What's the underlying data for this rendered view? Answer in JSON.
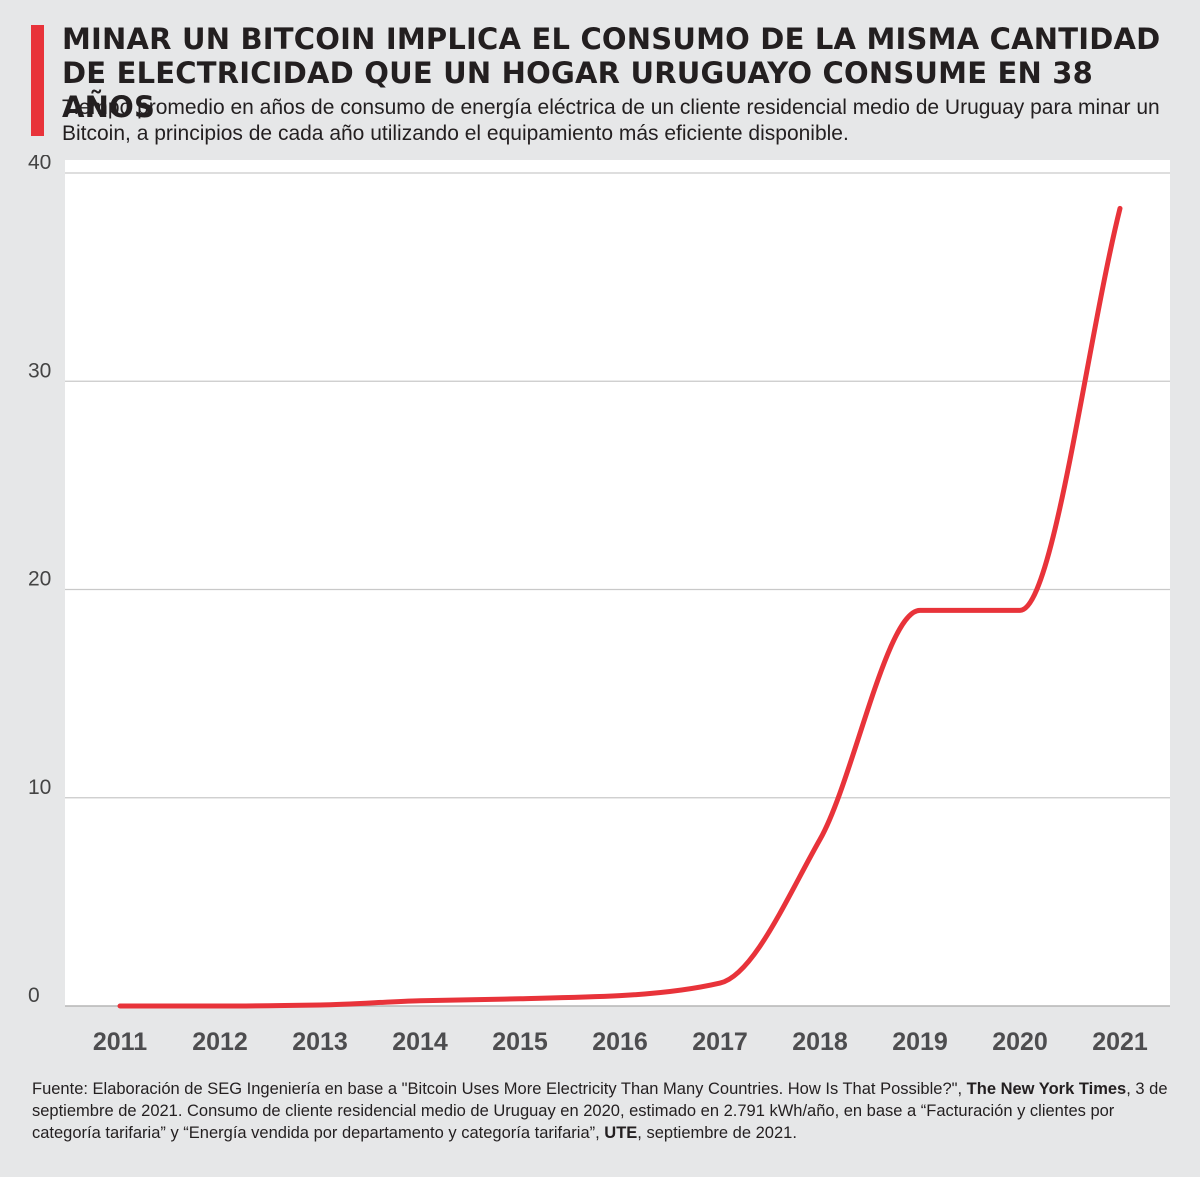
{
  "header": {
    "title": "MINAR UN BITCOIN IMPLICA EL CONSUMO DE LA MISMA CANTIDAD DE ELECTRICIDAD QUE UN HOGAR URUGUAYO CONSUME EN 38 AÑOS",
    "subtitle": "Tiempo promedio en años de consumo de energía eléctrica de un cliente residencial medio de Uruguay para minar un Bitcoin, a principios de cada año utilizando el equipamiento más eficiente disponible."
  },
  "colors": {
    "accent": "#e8333a",
    "line": "#e8333a",
    "background": "#e6e7e8",
    "plot_background": "#ffffff",
    "gridline": "#c9c9c9"
  },
  "chart_data": {
    "type": "line",
    "x": [
      2011,
      2012,
      2013,
      2014,
      2015,
      2016,
      2017,
      2018,
      2019,
      2020,
      2021
    ],
    "x_tick_labels": [
      "2011",
      "2012",
      "2013",
      "2014",
      "2015",
      "2016",
      "2017",
      "2018",
      "2019",
      "2020",
      "2021"
    ],
    "series": [
      {
        "values": [
          0.0,
          0.0,
          0.05,
          0.25,
          0.35,
          0.5,
          1.1,
          8.0,
          19.0,
          19.0,
          38.3
        ]
      }
    ],
    "ylim": [
      0,
      40
    ],
    "y_ticks": [
      0,
      10,
      20,
      30,
      40
    ],
    "y_tick_labels": [
      "0",
      "10",
      "20",
      "30",
      "40"
    ],
    "grid": "horizontal",
    "legend": "none"
  },
  "source": {
    "part1": "Fuente: Elaboración de SEG Ingeniería en base a \"Bitcoin Uses More Electricity Than Many Countries. How Is That Possible?\", ",
    "bold1": "The New York Times",
    "part2": ", 3 de septiembre de 2021. Consumo de cliente residencial medio de Uruguay en 2020, estimado en 2.791 kWh/año, en base a “Facturación y clientes por categoría tarifaria” y “Energía vendida por departamento y categoría tarifaria”, ",
    "bold2": "UTE",
    "part3": ", septiembre de 2021."
  }
}
